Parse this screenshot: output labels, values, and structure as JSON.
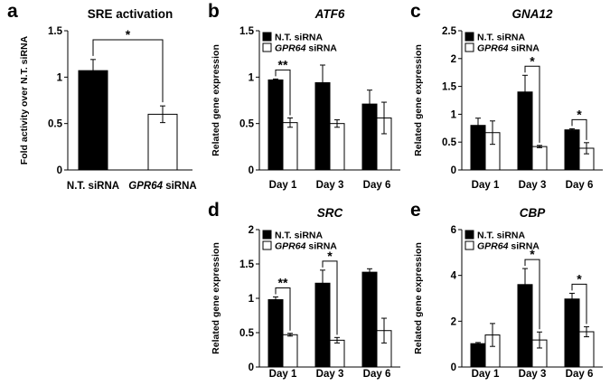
{
  "colors": {
    "series1": "#000000",
    "series2": "#ffffff",
    "axis": "#000000"
  },
  "chart_data": [
    {
      "panel": "a",
      "type": "bar",
      "title": "SRE activation",
      "title_italic": false,
      "ylabel": "Fold activity over N.T. siRNA",
      "ylim": [
        0,
        1.5
      ],
      "yticks": [
        "0",
        "0.5",
        "1",
        "1.5"
      ],
      "categories": [
        {
          "parts": [
            {
              "text": "N.T. siRNA",
              "italic": false
            }
          ]
        },
        {
          "parts": [
            {
              "text": "GPR64",
              "italic": true
            },
            {
              "text": " siRNA",
              "italic": false
            }
          ]
        }
      ],
      "series": [
        {
          "name": "",
          "values": [
            1.07,
            0.6
          ],
          "errors": [
            0.12,
            0.09
          ]
        }
      ],
      "legend": [],
      "significance": [
        {
          "label": "*",
          "from": 0,
          "to": 1
        }
      ]
    },
    {
      "panel": "b",
      "type": "bar",
      "title": "ATF6",
      "title_italic": true,
      "ylabel": "Related gene expression",
      "ylim": [
        0,
        1.5
      ],
      "yticks": [
        "0",
        "0.5",
        "1",
        "1.5"
      ],
      "categories": [
        "Day 1",
        "Day 3",
        "Day 6"
      ],
      "series": [
        {
          "name": "N.T. siRNA",
          "values": [
            0.97,
            0.94,
            0.71
          ],
          "errors": [
            0.01,
            0.19,
            0.15
          ]
        },
        {
          "name": "GPR64 siRNA",
          "values": [
            0.51,
            0.5,
            0.56
          ],
          "errors": [
            0.05,
            0.04,
            0.17
          ]
        }
      ],
      "legend": [
        {
          "parts": [
            {
              "text": "N.T. siRNA",
              "italic": false
            }
          ]
        },
        {
          "parts": [
            {
              "text": "GPR64",
              "italic": true
            },
            {
              "text": " siRNA",
              "italic": false
            }
          ]
        }
      ],
      "significance": [
        {
          "label": "**",
          "group": 0
        }
      ]
    },
    {
      "panel": "c",
      "type": "bar",
      "title": "GNA12",
      "title_italic": true,
      "ylabel": "Related gene expression",
      "ylim": [
        0,
        2.5
      ],
      "yticks": [
        "0",
        "0.5",
        "1",
        "1.5",
        "2",
        "2.5"
      ],
      "categories": [
        "Day 1",
        "Day 3",
        "Day 6"
      ],
      "series": [
        {
          "name": "N.T. siRNA",
          "values": [
            0.8,
            1.4,
            0.72
          ],
          "errors": [
            0.13,
            0.3,
            0.02
          ]
        },
        {
          "name": "GPR64 siRNA",
          "values": [
            0.67,
            0.42,
            0.39
          ],
          "errors": [
            0.21,
            0.02,
            0.1
          ]
        }
      ],
      "legend": [
        {
          "parts": [
            {
              "text": "N.T. siRNA",
              "italic": false
            }
          ]
        },
        {
          "parts": [
            {
              "text": "GPR64",
              "italic": true
            },
            {
              "text": " siRNA",
              "italic": false
            }
          ]
        }
      ],
      "significance": [
        {
          "label": "*",
          "group": 1
        },
        {
          "label": "*",
          "group": 2
        }
      ]
    },
    {
      "panel": "d",
      "type": "bar",
      "title": "SRC",
      "title_italic": true,
      "ylabel": "Related gene expression",
      "ylim": [
        0,
        2
      ],
      "yticks": [
        "0",
        "0.5",
        "1",
        "1.5",
        "2"
      ],
      "categories": [
        "Day 1",
        "Day 3",
        "Day 6"
      ],
      "series": [
        {
          "name": "N.T. siRNA",
          "values": [
            0.98,
            1.22,
            1.38
          ],
          "errors": [
            0.04,
            0.19,
            0.05
          ]
        },
        {
          "name": "GPR64 siRNA",
          "values": [
            0.47,
            0.39,
            0.53
          ],
          "errors": [
            0.02,
            0.04,
            0.18
          ]
        }
      ],
      "legend": [
        {
          "parts": [
            {
              "text": "N.T. siRNA",
              "italic": false
            }
          ]
        },
        {
          "parts": [
            {
              "text": "GPR64",
              "italic": true
            },
            {
              "text": " siRNA",
              "italic": false
            }
          ]
        }
      ],
      "significance": [
        {
          "label": "**",
          "group": 0
        },
        {
          "label": "*",
          "group": 1
        }
      ]
    },
    {
      "panel": "e",
      "type": "bar",
      "title": "CBP",
      "title_italic": true,
      "ylabel": "Related gene expression",
      "ylim": [
        0,
        6
      ],
      "yticks": [
        "0",
        "2",
        "4",
        "6"
      ],
      "categories": [
        "Day 1",
        "Day 3",
        "Day 6"
      ],
      "series": [
        {
          "name": "N.T. siRNA",
          "values": [
            1.02,
            3.6,
            2.97
          ],
          "errors": [
            0.05,
            0.7,
            0.25
          ]
        },
        {
          "name": "GPR64 siRNA",
          "values": [
            1.4,
            1.18,
            1.54
          ],
          "errors": [
            0.5,
            0.35,
            0.22
          ]
        }
      ],
      "legend": [
        {
          "parts": [
            {
              "text": "N.T. siRNA",
              "italic": false
            }
          ]
        },
        {
          "parts": [
            {
              "text": "GPR64",
              "italic": true
            },
            {
              "text": " siRNA",
              "italic": false
            }
          ]
        }
      ],
      "significance": [
        {
          "label": "*",
          "group": 1
        },
        {
          "label": "*",
          "group": 2
        }
      ]
    }
  ]
}
